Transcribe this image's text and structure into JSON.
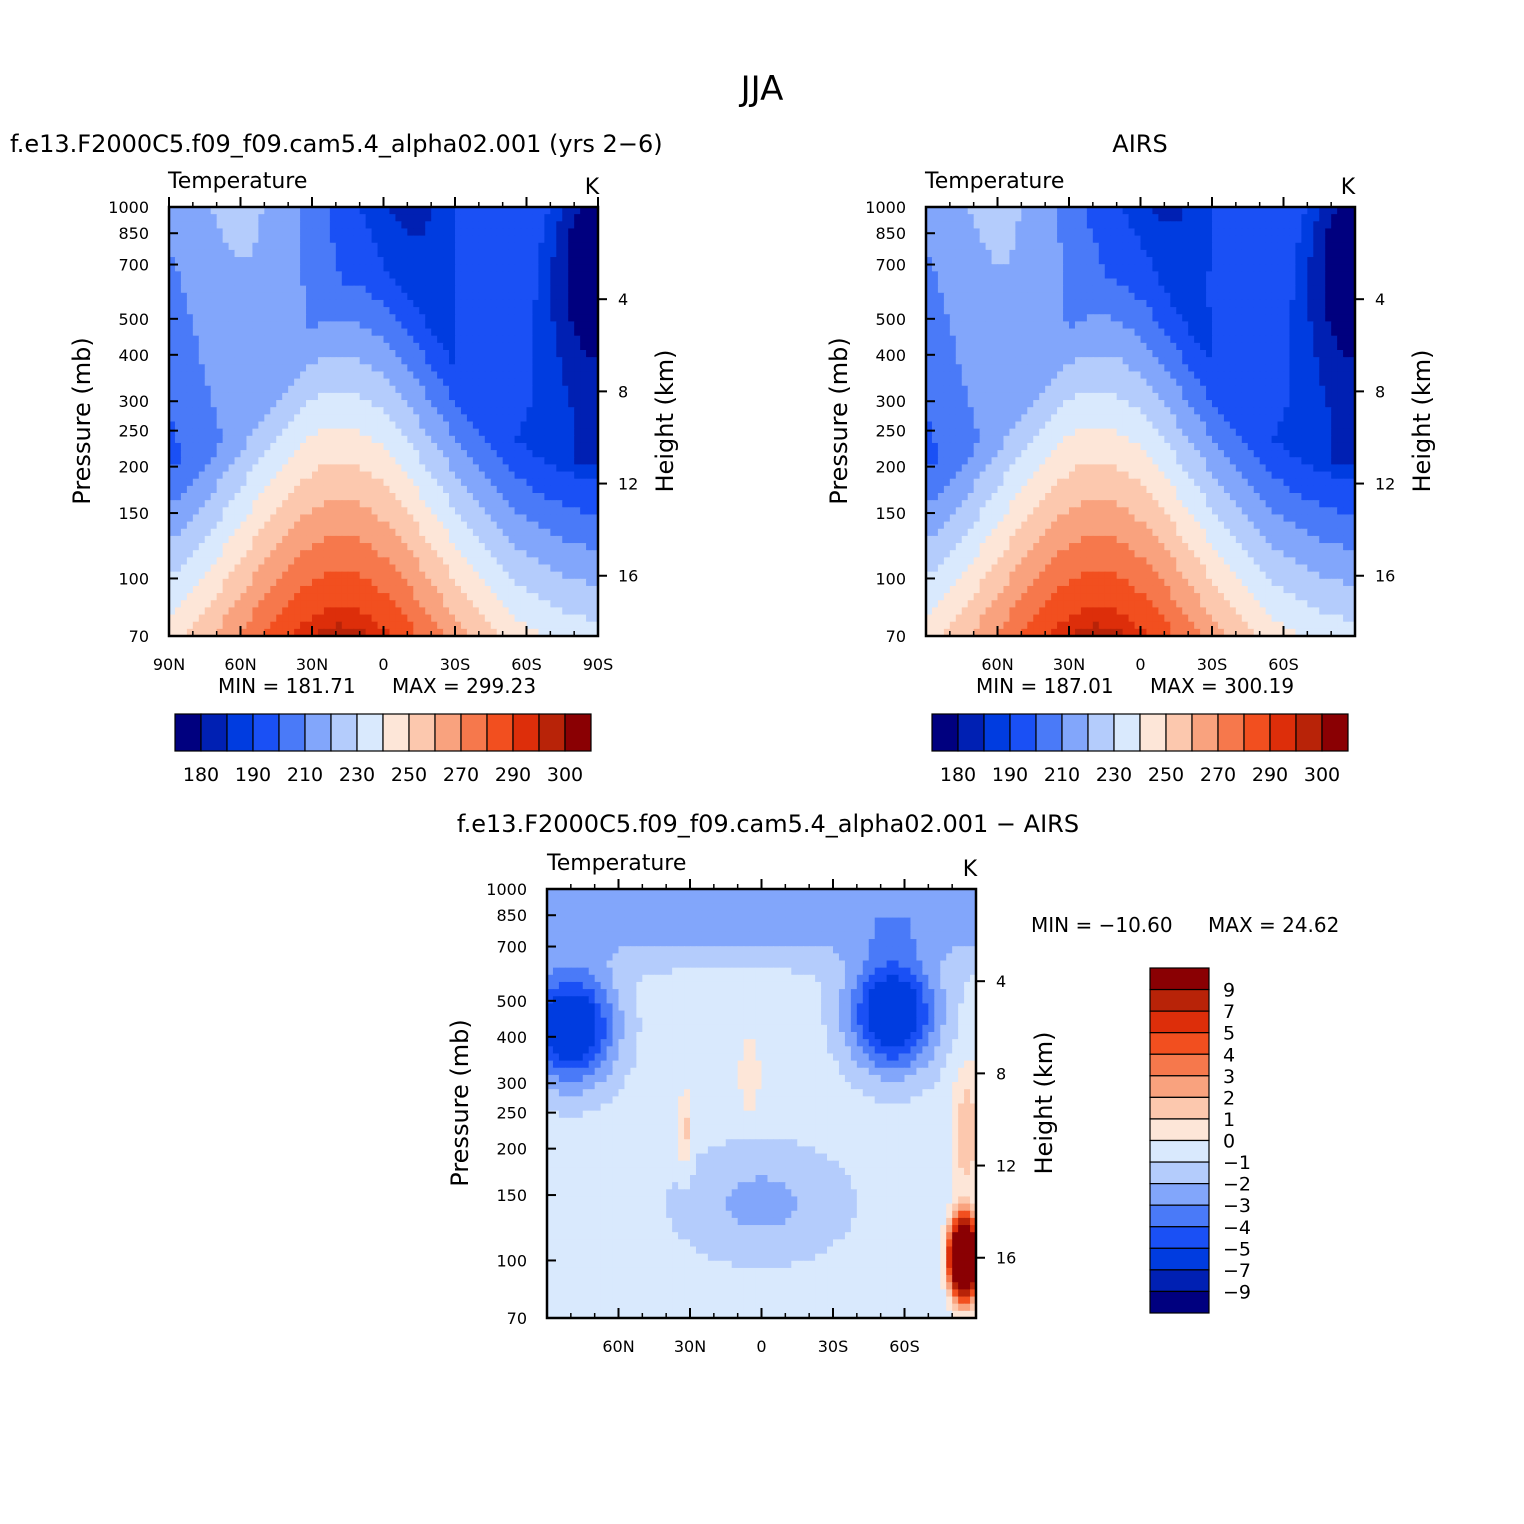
{
  "figure": {
    "title": "JJA",
    "palette": [
      "#00007f",
      "#0020b3",
      "#003ce0",
      "#1a50f5",
      "#4a7af8",
      "#82a6fb",
      "#b4ccfc",
      "#d9e9fd",
      "#fde6d8",
      "#fcc8ae",
      "#f9a27e",
      "#f6784c",
      "#f24f1f",
      "#dd2e0a",
      "#b82308",
      "#8a0003"
    ]
  },
  "chart_data": [
    {
      "type": "heatmap",
      "title": "f.e13.F2000C5.f09_f09.cam5.4_alpha02.001  (yrs 2−6)",
      "subtitle": "Temperature",
      "units": "K",
      "ylabel": "Pressure  (mb)",
      "y2label": "Height  (km)",
      "xlabel": "",
      "x_ticks": [
        "90N",
        "60N",
        "30N",
        "0",
        "30S",
        "60S",
        "90S"
      ],
      "y_ticks": [
        "70",
        "100",
        "150",
        "200",
        "250",
        "300",
        "400",
        "500",
        "700",
        "850",
        "1000"
      ],
      "y2_ticks": [
        "16",
        "12",
        "8",
        "4"
      ],
      "xlim": [
        90,
        -90
      ],
      "ylim": [
        1000,
        70
      ],
      "y_scale": "log",
      "min_label": "MIN  =  181.71",
      "max_label": "MAX  =  299.23",
      "min": 181.71,
      "max": 299.23,
      "levels": [
        180,
        185,
        190,
        200,
        210,
        220,
        230,
        240,
        250,
        260,
        270,
        280,
        290,
        295,
        300
      ],
      "level_labels": [
        "180",
        "190",
        "210",
        "230",
        "250",
        "270",
        "290",
        "300"
      ],
      "grid": false
    },
    {
      "type": "heatmap",
      "title": "AIRS",
      "subtitle": "Temperature",
      "units": "K",
      "ylabel": "Pressure  (mb)",
      "y2label": "Height  (km)",
      "xlabel": "",
      "x_ticks": [
        "60N",
        "30N",
        "0",
        "30S",
        "60S"
      ],
      "y_ticks": [
        "70",
        "100",
        "150",
        "200",
        "250",
        "300",
        "400",
        "500",
        "700",
        "850",
        "1000"
      ],
      "y2_ticks": [
        "16",
        "12",
        "8",
        "4"
      ],
      "xlim": [
        90,
        -90
      ],
      "ylim": [
        1000,
        70
      ],
      "y_scale": "log",
      "min_label": "MIN  =  187.01",
      "max_label": "MAX  =  300.19",
      "min": 187.01,
      "max": 300.19,
      "levels": [
        180,
        185,
        190,
        200,
        210,
        220,
        230,
        240,
        250,
        260,
        270,
        280,
        290,
        295,
        300
      ],
      "level_labels": [
        "180",
        "190",
        "210",
        "230",
        "250",
        "270",
        "290",
        "300"
      ],
      "grid": false
    },
    {
      "type": "heatmap",
      "title": "f.e13.F2000C5.f09_f09.cam5.4_alpha02.001  −  AIRS",
      "subtitle": "Temperature",
      "units": "K",
      "ylabel": "Pressure  (mb)",
      "y2label": "Height  (km)",
      "xlabel": "",
      "x_ticks": [
        "60N",
        "30N",
        "0",
        "30S",
        "60S"
      ],
      "y_ticks": [
        "70",
        "100",
        "150",
        "200",
        "250",
        "300",
        "400",
        "500",
        "700",
        "850",
        "1000"
      ],
      "y2_ticks": [
        "16",
        "12",
        "8",
        "4"
      ],
      "xlim": [
        90,
        -90
      ],
      "ylim": [
        1000,
        70
      ],
      "y_scale": "log",
      "min_label": "MIN  =  −10.60",
      "max_label": "MAX  =    24.62",
      "min": -10.6,
      "max": 24.62,
      "levels": [
        -9,
        -7,
        -5,
        -4,
        -3,
        -2,
        -1,
        0,
        1,
        2,
        3,
        4,
        5,
        7,
        9
      ],
      "level_labels": [
        "9",
        "7",
        "5",
        "4",
        "3",
        "2",
        "1",
        "0",
        "−1",
        "−2",
        "−3",
        "−4",
        "−5",
        "−7",
        "−9"
      ],
      "grid": false
    }
  ]
}
